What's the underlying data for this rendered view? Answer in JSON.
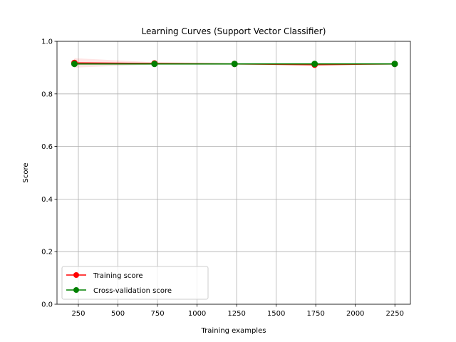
{
  "chart_data": {
    "type": "line",
    "title": "Learning Curves (Support Vector Classifier)",
    "xlabel": "Training examples",
    "ylabel": "Score",
    "xlim": [
      115,
      2348
    ],
    "ylim": [
      0.0,
      1.0
    ],
    "xticks": [
      250,
      500,
      750,
      1000,
      1250,
      1500,
      1750,
      2000,
      2250
    ],
    "yticks": [
      0.0,
      0.2,
      0.4,
      0.6,
      0.8,
      1.0
    ],
    "xtick_labels": [
      "250",
      "500",
      "750",
      "1000",
      "1250",
      "1500",
      "1750",
      "2000",
      "2250"
    ],
    "ytick_labels": [
      "0.0",
      "0.2",
      "0.4",
      "0.6",
      "0.8",
      "1.0"
    ],
    "grid": true,
    "legend_position": "lower-left",
    "x": [
      225,
      731,
      1237,
      1743,
      2249
    ],
    "series": [
      {
        "name": "Training score",
        "color": "#ff0000",
        "values": [
          0.918,
          0.916,
          0.914,
          0.911,
          0.914
        ],
        "band_lower": [
          0.9,
          0.912,
          0.911,
          0.907,
          0.911
        ],
        "band_upper": [
          0.936,
          0.92,
          0.917,
          0.915,
          0.917
        ]
      },
      {
        "name": "Cross-validation score",
        "color": "#008000",
        "values": [
          0.914,
          0.914,
          0.914,
          0.914,
          0.914
        ],
        "band_lower": [
          0.91,
          0.91,
          0.91,
          0.91,
          0.91
        ],
        "band_upper": [
          0.918,
          0.918,
          0.918,
          0.918,
          0.918
        ]
      }
    ]
  }
}
